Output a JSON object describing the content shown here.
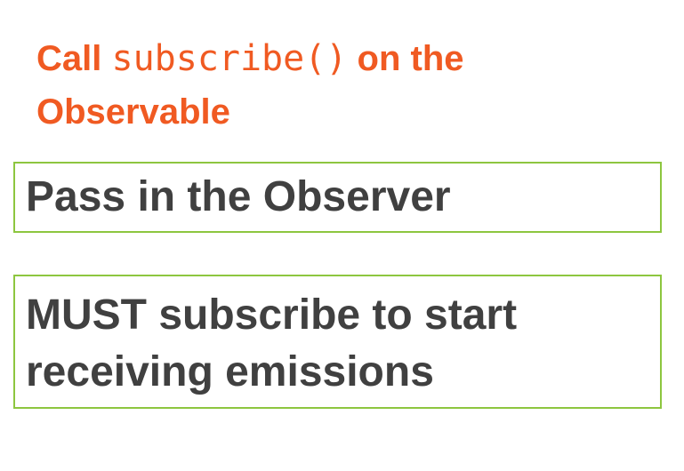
{
  "heading": {
    "part1": "Call",
    "code": "subscribe()",
    "part2": "on the",
    "part3": "Observable"
  },
  "boxes": [
    {
      "text": "Pass in the Observer"
    },
    {
      "line1": "MUST subscribe to start",
      "line2": "receiving emissions"
    }
  ],
  "colors": {
    "heading": "#f05a22",
    "box_border": "#8dc63f",
    "box_text": "#404040"
  }
}
